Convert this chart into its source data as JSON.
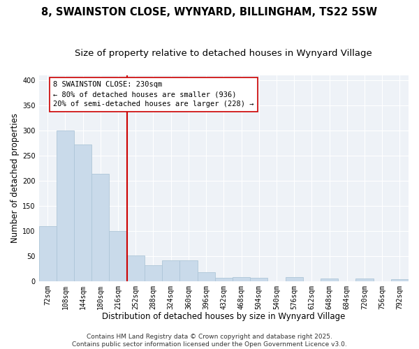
{
  "title_line1": "8, SWAINSTON CLOSE, WYNYARD, BILLINGHAM, TS22 5SW",
  "title_line2": "Size of property relative to detached houses in Wynyard Village",
  "xlabel": "Distribution of detached houses by size in Wynyard Village",
  "ylabel": "Number of detached properties",
  "categories": [
    "72sqm",
    "108sqm",
    "144sqm",
    "180sqm",
    "216sqm",
    "252sqm",
    "288sqm",
    "324sqm",
    "360sqm",
    "396sqm",
    "432sqm",
    "468sqm",
    "504sqm",
    "540sqm",
    "576sqm",
    "612sqm",
    "648sqm",
    "684sqm",
    "720sqm",
    "756sqm",
    "792sqm"
  ],
  "values": [
    110,
    300,
    272,
    213,
    100,
    51,
    32,
    41,
    41,
    18,
    7,
    8,
    7,
    0,
    8,
    0,
    5,
    0,
    5,
    0,
    4
  ],
  "bar_color": "#c9daea",
  "bar_edge_color": "#aec6d8",
  "vline_color": "#cc0000",
  "annotation_title": "8 SWAINSTON CLOSE: 230sqm",
  "annotation_line1": "← 80% of detached houses are smaller (936)",
  "annotation_line2": "20% of semi-detached houses are larger (228) →",
  "annotation_box_color": "#cc0000",
  "annotation_box_fill": "#ffffff",
  "footer_line1": "Contains HM Land Registry data © Crown copyright and database right 2025.",
  "footer_line2": "Contains public sector information licensed under the Open Government Licence v3.0.",
  "ylim": [
    0,
    410
  ],
  "yticks": [
    0,
    50,
    100,
    150,
    200,
    250,
    300,
    350,
    400
  ],
  "background_color": "#ffffff",
  "plot_bg_color": "#eef2f7",
  "grid_color": "#ffffff",
  "title_fontsize": 10.5,
  "subtitle_fontsize": 9.5,
  "axis_label_fontsize": 8.5,
  "tick_fontsize": 7,
  "annotation_fontsize": 7.5,
  "footer_fontsize": 6.5
}
